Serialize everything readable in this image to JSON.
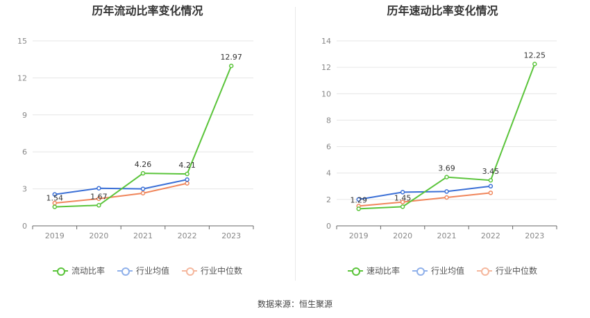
{
  "source": "数据来源：恒生聚源",
  "colors": {
    "main": "#5ac43a",
    "avg": "#3a6fd6",
    "median": "#f0855a"
  },
  "chart_data": [
    {
      "type": "line",
      "title": "历年流动比率变化情况",
      "x": [
        "2019",
        "2020",
        "2021",
        "2022",
        "2023"
      ],
      "ylim": [
        0,
        15
      ],
      "yticks": [
        0,
        3,
        6,
        9,
        12,
        15
      ],
      "grid": true,
      "legend_position": "bottom",
      "series": [
        {
          "name": "流动比率",
          "color": "#5ac43a",
          "values": [
            1.54,
            1.67,
            4.26,
            4.21,
            12.97
          ],
          "labels": [
            "1.54",
            "1.67",
            "4.26",
            "4.21",
            "12.97"
          ]
        },
        {
          "name": "行业均值",
          "color": "#3a6fd6",
          "values": [
            2.55,
            3.05,
            3.0,
            3.75,
            null
          ]
        },
        {
          "name": "行业中位数",
          "color": "#f0855a",
          "values": [
            1.85,
            2.2,
            2.65,
            3.45,
            null
          ]
        }
      ]
    },
    {
      "type": "line",
      "title": "历年速动比率变化情况",
      "x": [
        "2019",
        "2020",
        "2021",
        "2022",
        "2023"
      ],
      "ylim": [
        0,
        14
      ],
      "yticks": [
        0,
        2,
        4,
        6,
        8,
        10,
        12,
        14
      ],
      "grid": true,
      "legend_position": "bottom",
      "series": [
        {
          "name": "速动比率",
          "color": "#5ac43a",
          "values": [
            1.29,
            1.45,
            3.69,
            3.45,
            12.25
          ],
          "labels": [
            "1.29",
            "1.45",
            "3.69",
            "3.45",
            "12.25"
          ]
        },
        {
          "name": "行业均值",
          "color": "#3a6fd6",
          "values": [
            2.0,
            2.55,
            2.6,
            3.0,
            null
          ]
        },
        {
          "name": "行业中位数",
          "color": "#f0855a",
          "values": [
            1.5,
            1.8,
            2.15,
            2.5,
            null
          ]
        }
      ]
    }
  ]
}
